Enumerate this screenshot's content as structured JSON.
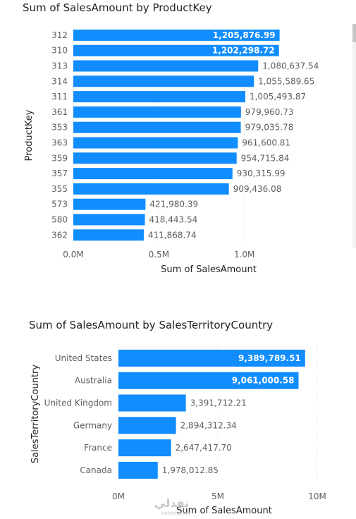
{
  "chart_data": [
    {
      "type": "bar",
      "orientation": "horizontal",
      "title": "Sum of SalesAmount by ProductKey",
      "xlabel": "Sum of SalesAmount",
      "ylabel": "ProductKey",
      "categories": [
        "312",
        "310",
        "313",
        "314",
        "311",
        "361",
        "353",
        "363",
        "359",
        "357",
        "355",
        "573",
        "580",
        "362"
      ],
      "values": [
        1205876.99,
        1202298.72,
        1080637.54,
        1055589.65,
        1005493.87,
        979960.73,
        979035.78,
        961600.81,
        954715.84,
        930315.99,
        909436.08,
        421980.39,
        418443.54,
        411868.74
      ],
      "value_labels": [
        "1,205,876.99",
        "1,202,298.72",
        "1,080,637.54",
        "1,055,589.65",
        "1,005,493.87",
        "979,960.73",
        "979,035.78",
        "961,600.81",
        "954,715.84",
        "930,315.99",
        "909,436.08",
        "421,980.39",
        "418,443.54",
        "411,868.74"
      ],
      "xticks": [
        0,
        500000,
        1000000
      ],
      "xtick_labels": [
        "0.0M",
        "0.5M",
        "1.0M"
      ],
      "xlim": [
        0,
        1500000
      ],
      "grid": true,
      "color": "#118DFF"
    },
    {
      "type": "bar",
      "orientation": "horizontal",
      "title": "Sum of SalesAmount by SalesTerritoryCountry",
      "xlabel": "Sum of SalesAmount",
      "ylabel": "SalesTerritoryCountry",
      "categories": [
        "United States",
        "Australia",
        "United Kingdom",
        "Germany",
        "France",
        "Canada"
      ],
      "values": [
        9389789.51,
        9061000.58,
        3391712.21,
        2894312.34,
        2647417.7,
        1978012.85
      ],
      "value_labels": [
        "9,389,789.51",
        "9,061,000.58",
        "3,391,712.21",
        "2,894,312.34",
        "2,647,417.70",
        "1,978,012.85"
      ],
      "xticks": [
        0,
        5000000,
        10000000
      ],
      "xtick_labels": [
        "0M",
        "5M",
        "10M"
      ],
      "xlim": [
        0,
        10000000
      ],
      "grid": true,
      "color": "#118DFF"
    }
  ],
  "watermark": {
    "text": "نفذلي",
    "sub": "nafezly.com"
  }
}
